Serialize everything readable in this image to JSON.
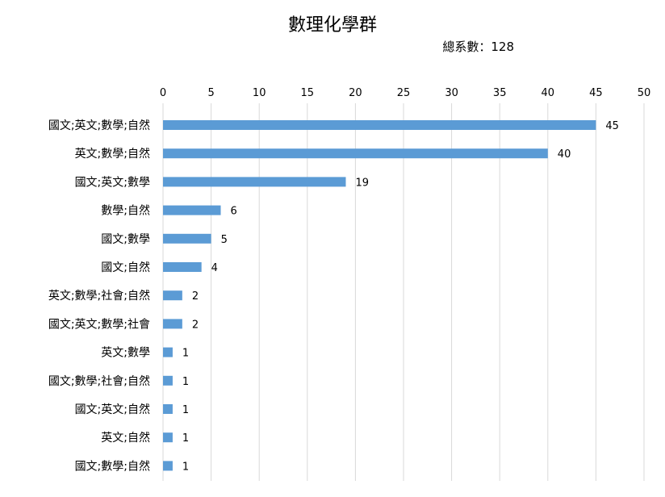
{
  "chart_data": {
    "type": "bar",
    "orientation": "horizontal",
    "title": "數理化學群",
    "subtitle": "總系數：128",
    "categories": [
      "國文;英文;數學;自然",
      "英文;數學;自然",
      "國文;英文;數學",
      "數學;自然",
      "國文;數學",
      "國文;自然",
      "英文;數學;社會;自然",
      "國文;英文;數學;社會",
      "英文;數學",
      "國文;數學;社會;自然",
      "國文;英文;自然",
      "英文;自然",
      "國文;數學;自然"
    ],
    "values": [
      45,
      40,
      19,
      6,
      5,
      4,
      2,
      2,
      1,
      1,
      1,
      1,
      1
    ],
    "xlim": [
      0,
      50
    ],
    "x_ticks": [
      0,
      5,
      10,
      15,
      20,
      25,
      30,
      35,
      40,
      45,
      50
    ],
    "x_axis_position": "top",
    "grid": true,
    "legend": "none",
    "colors": {
      "bar": "#5b9bd5",
      "grid": "#d9d9d9"
    }
  }
}
